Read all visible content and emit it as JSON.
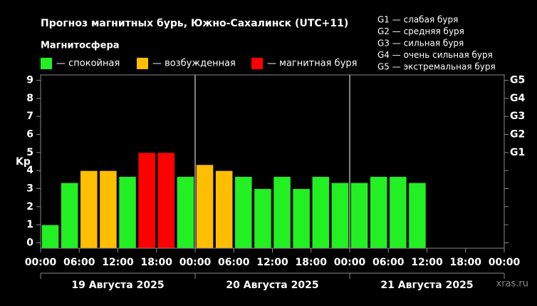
{
  "chart_data": {
    "type": "bar",
    "title": "Прогноз магнитных бурь, Южно-Сахалинск (UTC+11)",
    "legend_title": "Магнитосфера",
    "legend": [
      {
        "name": "— спокойная",
        "color": "#22f022"
      },
      {
        "name": "— возбужденная",
        "color": "#ffbf00"
      },
      {
        "name": "— магнитная буря",
        "color": "#ff0000"
      }
    ],
    "storm_scale": [
      "G1 — слабая буря",
      "G2 — средняя буря",
      "G3 — сильная буря",
      "G4 — очень сильная буря",
      "G5 — экстремальная буря"
    ],
    "y_label": "Kp",
    "x": [
      0,
      3,
      6,
      9,
      12,
      15,
      18,
      21,
      24,
      27,
      30,
      33,
      36,
      39,
      42,
      45,
      48,
      51,
      54,
      57,
      60,
      63,
      66,
      69
    ],
    "values": [
      1,
      3.33,
      4,
      4,
      3.67,
      5,
      5,
      3.67,
      4.33,
      4,
      3.67,
      3,
      3.67,
      3,
      3.67,
      3.33,
      3.33,
      3.67,
      3.67,
      3.33,
      null,
      null,
      null,
      null
    ],
    "colors": [
      "#22f022",
      "#22f022",
      "#ffbf00",
      "#ffbf00",
      "#22f022",
      "#ff0000",
      "#ff0000",
      "#22f022",
      "#ffbf00",
      "#ffbf00",
      "#22f022",
      "#22f022",
      "#22f022",
      "#22f022",
      "#22f022",
      "#22f022",
      "#22f022",
      "#22f022",
      "#22f022",
      "#22f022",
      null,
      null,
      null,
      null
    ],
    "xlim": [
      0,
      72
    ],
    "xticks": [
      {
        "value": 0,
        "label": "00:00"
      },
      {
        "value": 6,
        "label": "06:00"
      },
      {
        "value": 12,
        "label": "12:00"
      },
      {
        "value": 18,
        "label": "18:00"
      },
      {
        "value": 24,
        "label": "00:00"
      },
      {
        "value": 30,
        "label": "06:00"
      },
      {
        "value": 36,
        "label": "12:00"
      },
      {
        "value": 42,
        "label": "18:00"
      },
      {
        "value": 48,
        "label": "00:00"
      },
      {
        "value": 54,
        "label": "06:00"
      },
      {
        "value": 60,
        "label": "12:00"
      },
      {
        "value": 66,
        "label": "18:00"
      },
      {
        "value": 72,
        "label": "00:00"
      }
    ],
    "ylim": [
      -0.3,
      9.3
    ],
    "yticks": [
      0,
      1,
      2,
      3,
      4,
      5,
      6,
      7,
      8,
      9
    ],
    "y2lim": [
      -0.3,
      9.3
    ],
    "y2ticks": [
      {
        "value": 5,
        "label": "G1"
      },
      {
        "value": 6,
        "label": "G2"
      },
      {
        "value": 7,
        "label": "G3"
      },
      {
        "value": 8,
        "label": "G4"
      },
      {
        "value": 9,
        "label": "G5"
      }
    ],
    "day_labels": [
      "19 Августа 2025",
      "20 Августа 2025",
      "21 Августа 2025"
    ],
    "watermark": "xras.ru"
  }
}
